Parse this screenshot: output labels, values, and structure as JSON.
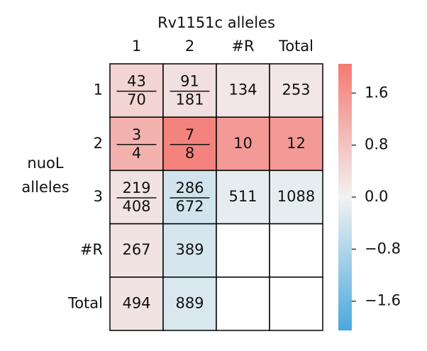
{
  "chart_data": {
    "type": "heatmap",
    "title": "Rv1151c alleles",
    "ylabel": [
      "nuoL",
      "alleles"
    ],
    "columns": [
      "1",
      "2",
      "#R",
      "Total"
    ],
    "rows": [
      "1",
      "2",
      "3",
      "#R",
      "Total"
    ],
    "cells": [
      [
        {
          "numerator": 43,
          "denominator": 70
        },
        {
          "numerator": 91,
          "denominator": 181
        },
        {
          "value": 134
        },
        {
          "value": 253
        }
      ],
      [
        {
          "numerator": 3,
          "denominator": 4
        },
        {
          "numerator": 7,
          "denominator": 8
        },
        {
          "value": 10
        },
        {
          "value": 12
        }
      ],
      [
        {
          "numerator": 219,
          "denominator": 408
        },
        {
          "numerator": 286,
          "denominator": 672
        },
        {
          "value": 511
        },
        {
          "value": 1088
        }
      ],
      [
        {
          "value": 267
        },
        {
          "value": 389
        },
        null,
        null
      ],
      [
        {
          "value": 494
        },
        {
          "value": 889
        },
        null,
        null
      ]
    ],
    "z": [
      [
        0.5,
        0.3,
        0.2,
        0.2
      ],
      [
        1.1,
        1.9,
        1.5,
        1.5
      ],
      [
        0.25,
        -0.4,
        -0.15,
        -0.15
      ],
      [
        0.25,
        -0.35,
        null,
        null
      ],
      [
        0.25,
        -0.3,
        null,
        null
      ]
    ],
    "colorbar": {
      "lim": [
        -2.05,
        2.05
      ],
      "colors": [
        "#4aa9de",
        "#f2f2f2",
        "#f47a74"
      ],
      "ticks": [
        1.6,
        0.8,
        {
          "value": 0,
          "label": "0.0"
        },
        {
          "value": -0.8,
          "label": "−0.8"
        },
        {
          "value": -1.6,
          "label": "−1.6"
        }
      ]
    }
  }
}
